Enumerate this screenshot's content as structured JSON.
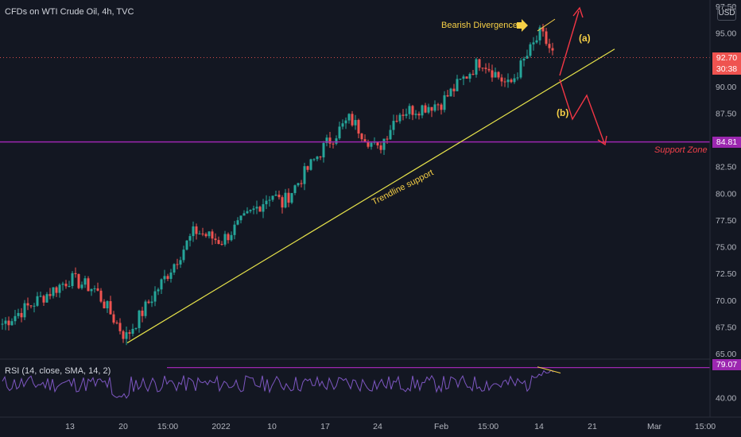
{
  "header": {
    "title": "CFDs on WTI Crude Oil, 4h, TVC",
    "currency": "USD"
  },
  "price_tags": {
    "last_price": "92.70",
    "countdown": "30:38",
    "support": "84.81",
    "rsi_value": "79.07"
  },
  "colors": {
    "background": "#131722",
    "bull": "#26a69a",
    "bear": "#ef5350",
    "trendline": "#e6e24a",
    "support": "#9c27b0",
    "rsi": "#7e57c2",
    "annotation": "#f7d046",
    "arrows": "#f23645"
  },
  "chart_data": [
    {
      "type": "candlestick",
      "title": "CFDs on WTI Crude Oil, 4h, TVC",
      "ylim": [
        65.0,
        97.5
      ],
      "y_ticks": [
        65.0,
        67.5,
        70.0,
        72.5,
        75.0,
        77.5,
        80.0,
        82.5,
        85.0,
        87.5,
        90.0,
        92.5,
        95.0,
        97.5
      ],
      "x_ticks": [
        "13",
        "20",
        "15:00",
        "2022",
        "10",
        "17",
        "24",
        "Feb",
        "15:00",
        "14",
        "21",
        "Mar",
        "15:00"
      ],
      "close_path": [
        [
          "start",
          67.8
        ],
        [
          "13",
          72.0
        ],
        [
          "mid-Dec",
          71.0
        ],
        [
          "20",
          66.5
        ],
        [
          "15:00",
          72.5
        ],
        [
          "late-Dec",
          76.5
        ],
        [
          "2022",
          75.5
        ],
        [
          "10",
          80.0
        ],
        [
          "mid-Jan",
          79.0
        ],
        [
          "17",
          84.5
        ],
        [
          "Jan peak",
          87.0
        ],
        [
          "24",
          84.0
        ],
        [
          "late-Jan",
          87.5
        ],
        [
          "Feb",
          88.5
        ],
        [
          "15:00",
          92.5
        ],
        [
          "pre-14",
          90.0
        ],
        [
          "14",
          95.0
        ],
        [
          "last",
          92.7
        ]
      ],
      "last_price": 92.7,
      "support_zone": {
        "label": "Support Zone",
        "value": 84.81
      },
      "trendline": {
        "label": "Trendline support",
        "from": [
          "20",
          66.0
        ],
        "to": [
          "21",
          93.0
        ]
      },
      "annotations": [
        {
          "text": "Bearish Divergence"
        },
        {
          "text": "(a)"
        },
        {
          "text": "(b)"
        }
      ],
      "grid": false
    },
    {
      "type": "line",
      "title": "RSI (14, close, SMA, 14, 2)",
      "ylim": [
        20,
        90
      ],
      "y_ticks": [
        40.0,
        79.07
      ],
      "upper_band": 79.07,
      "last_value": 79.07
    }
  ],
  "drawing": {
    "rsi_label": "RSI (14, close, SMA, 14, 2)"
  }
}
